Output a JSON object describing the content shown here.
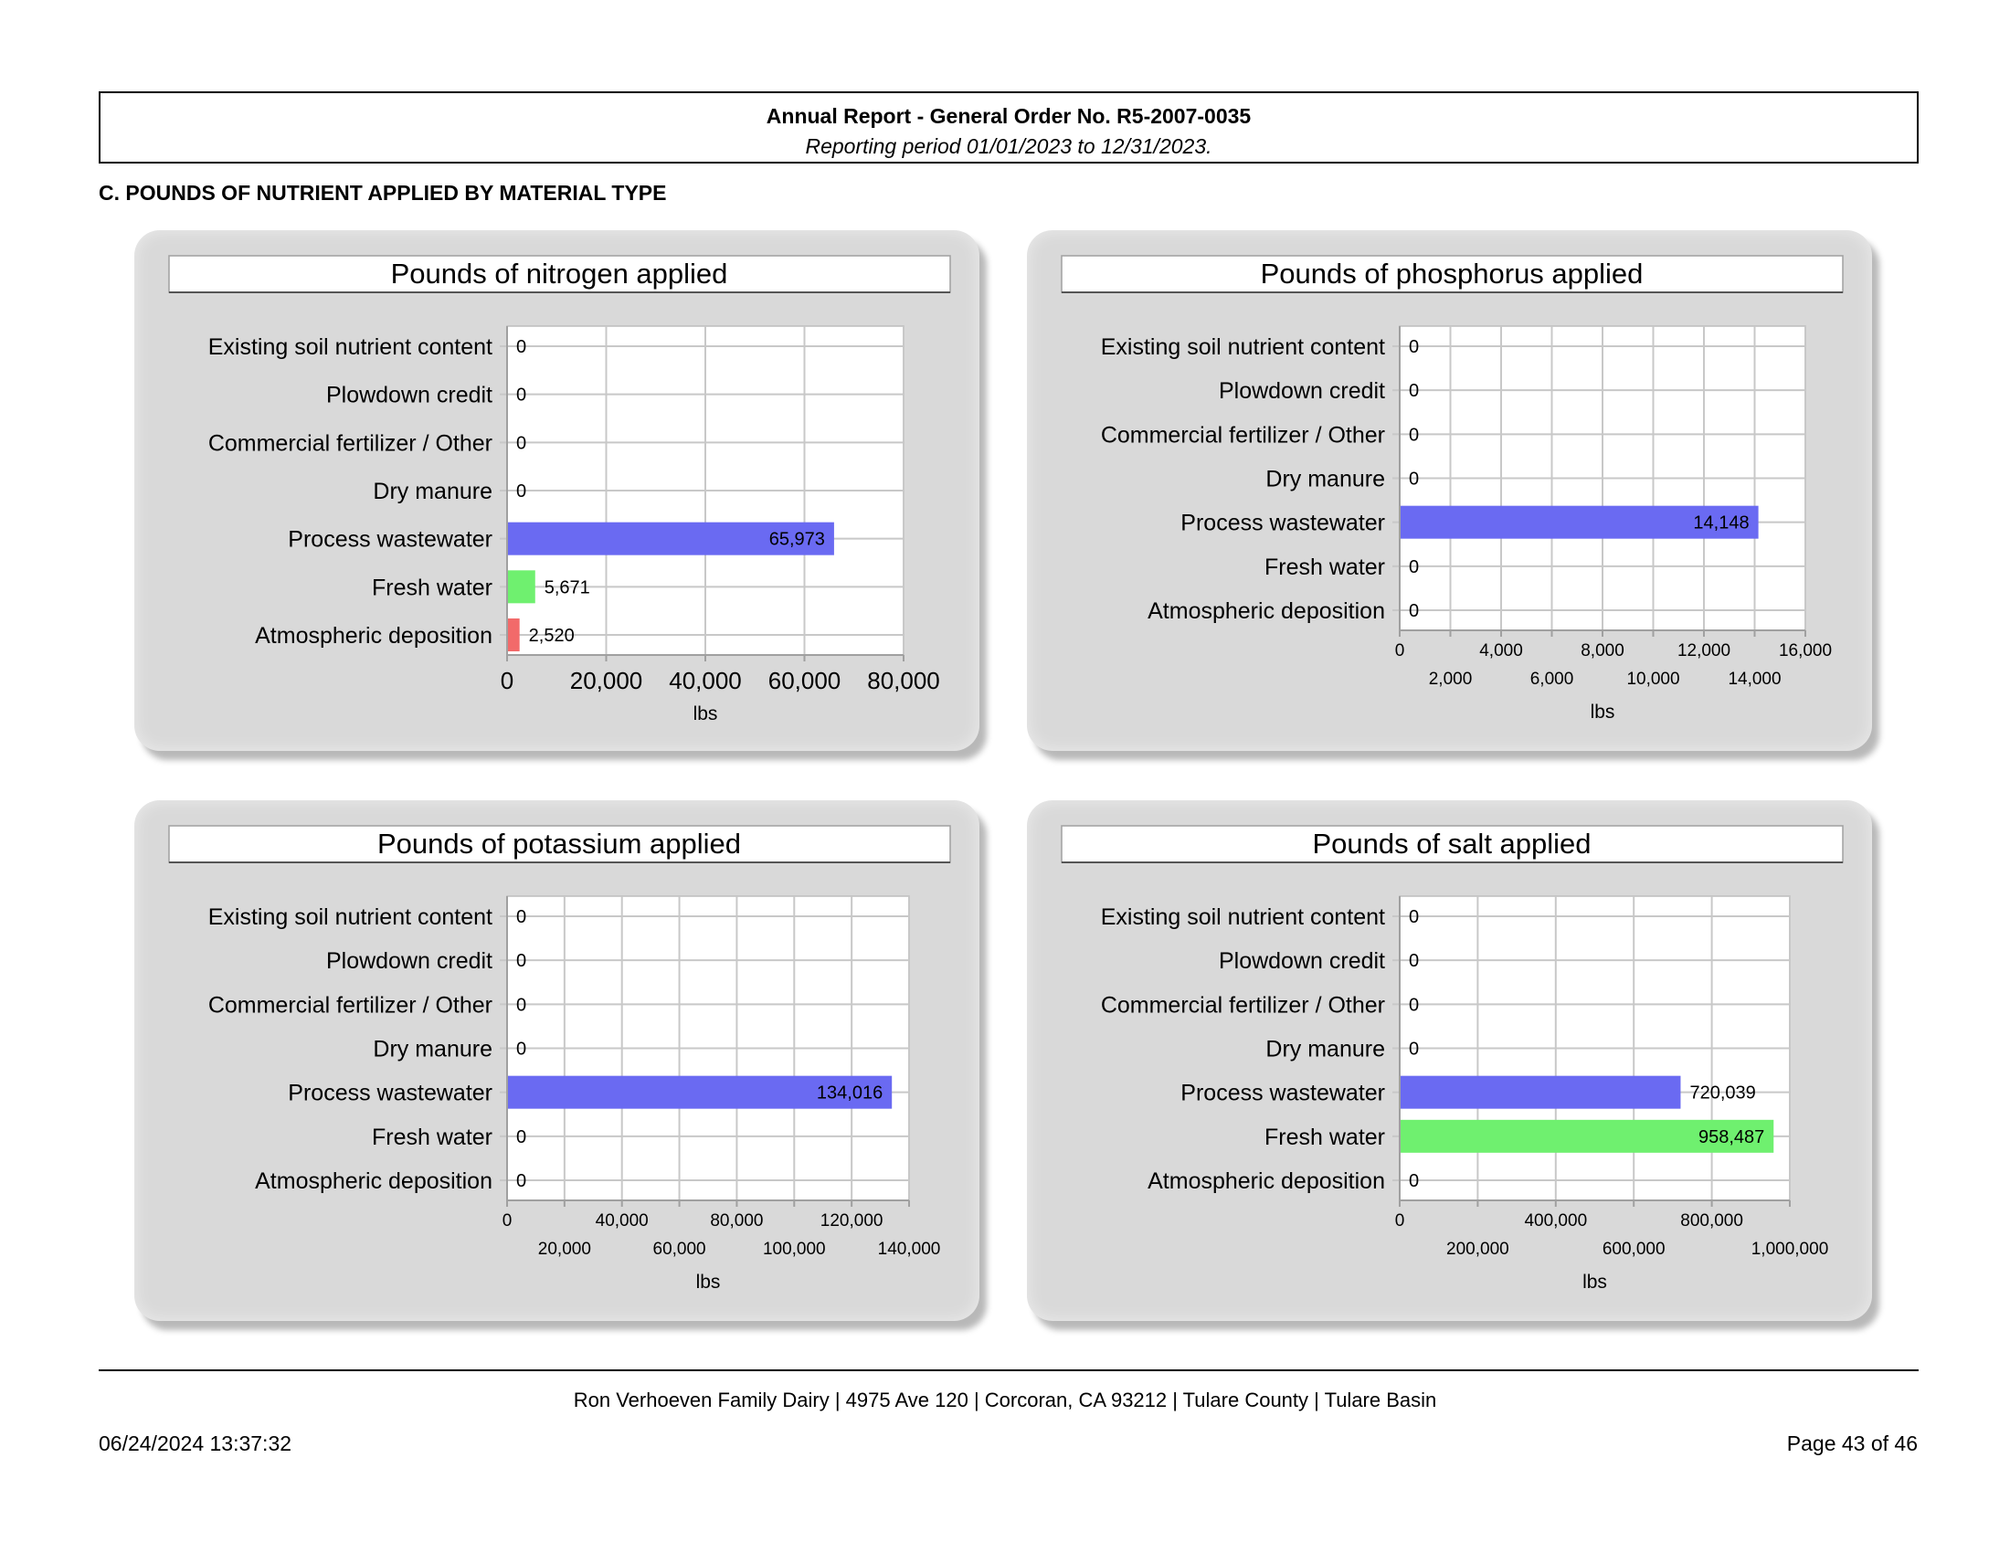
{
  "header": {
    "title": "Annual Report - General Order No. R5-2007-0035",
    "subtitle": "Reporting period 01/01/2023 to 12/31/2023."
  },
  "section_heading": "C. POUNDS OF NUTRIENT APPLIED BY MATERIAL TYPE",
  "chart_data": [
    {
      "type": "bar",
      "orientation": "horizontal",
      "title": "Pounds of nitrogen applied",
      "xlabel": "lbs",
      "ylabel": "",
      "categories": [
        "Existing soil nutrient content",
        "Plowdown credit",
        "Commercial fertilizer / Other",
        "Dry manure",
        "Process wastewater",
        "Fresh water",
        "Atmospheric deposition"
      ],
      "values": [
        0,
        0,
        0,
        0,
        65973,
        5671,
        2520
      ],
      "value_labels": [
        "0",
        "0",
        "0",
        "0",
        "65,973",
        "5,671",
        "2,520"
      ],
      "bar_colors": [
        "#6a6af2",
        "#6a6af2",
        "#6a6af2",
        "#6a6af2",
        "#6a6af2",
        "#6ff06f",
        "#f26a6a"
      ],
      "xlim": [
        0,
        80000
      ],
      "x_ticks": [
        0,
        20000,
        40000,
        60000,
        80000
      ],
      "x_tick_labels": [
        "0",
        "20,000",
        "40,000",
        "60,000",
        "80,000"
      ],
      "tick_style": "single",
      "grid": true,
      "legend": "none"
    },
    {
      "type": "bar",
      "orientation": "horizontal",
      "title": "Pounds of phosphorus applied",
      "xlabel": "lbs",
      "ylabel": "",
      "categories": [
        "Existing soil nutrient content",
        "Plowdown credit",
        "Commercial fertilizer / Other",
        "Dry manure",
        "Process wastewater",
        "Fresh water",
        "Atmospheric deposition"
      ],
      "values": [
        0,
        0,
        0,
        0,
        14148,
        0,
        0
      ],
      "value_labels": [
        "0",
        "0",
        "0",
        "0",
        "14,148",
        "0",
        "0"
      ],
      "bar_colors": [
        "#6a6af2",
        "#6a6af2",
        "#6a6af2",
        "#6a6af2",
        "#6a6af2",
        "#6ff06f",
        "#f26a6a"
      ],
      "xlim": [
        0,
        16000
      ],
      "x_ticks": [
        0,
        2000,
        4000,
        6000,
        8000,
        10000,
        12000,
        14000,
        16000
      ],
      "x_tick_labels": [
        "0",
        "2,000",
        "4,000",
        "6,000",
        "8,000",
        "10,000",
        "12,000",
        "14,000",
        "16,000"
      ],
      "tick_style": "staggered",
      "grid": true,
      "legend": "none"
    },
    {
      "type": "bar",
      "orientation": "horizontal",
      "title": "Pounds of potassium applied",
      "xlabel": "lbs",
      "ylabel": "",
      "categories": [
        "Existing soil nutrient content",
        "Plowdown credit",
        "Commercial fertilizer / Other",
        "Dry manure",
        "Process wastewater",
        "Fresh water",
        "Atmospheric deposition"
      ],
      "values": [
        0,
        0,
        0,
        0,
        134016,
        0,
        0
      ],
      "value_labels": [
        "0",
        "0",
        "0",
        "0",
        "134,016",
        "0",
        "0"
      ],
      "bar_colors": [
        "#6a6af2",
        "#6a6af2",
        "#6a6af2",
        "#6a6af2",
        "#6a6af2",
        "#6ff06f",
        "#f26a6a"
      ],
      "xlim": [
        0,
        140000
      ],
      "x_ticks": [
        0,
        20000,
        40000,
        60000,
        80000,
        100000,
        120000,
        140000
      ],
      "x_tick_labels": [
        "0",
        "20,000",
        "40,000",
        "60,000",
        "80,000",
        "100,000",
        "120,000",
        "140,000"
      ],
      "tick_style": "staggered",
      "grid": true,
      "legend": "none"
    },
    {
      "type": "bar",
      "orientation": "horizontal",
      "title": "Pounds of salt applied",
      "xlabel": "lbs",
      "ylabel": "",
      "categories": [
        "Existing soil nutrient content",
        "Plowdown credit",
        "Commercial fertilizer / Other",
        "Dry manure",
        "Process wastewater",
        "Fresh water",
        "Atmospheric deposition"
      ],
      "values": [
        0,
        0,
        0,
        0,
        720039,
        958487,
        0
      ],
      "value_labels": [
        "0",
        "0",
        "0",
        "0",
        "720,039",
        "958,487",
        "0"
      ],
      "bar_colors": [
        "#6a6af2",
        "#6a6af2",
        "#6a6af2",
        "#6a6af2",
        "#6a6af2",
        "#6ff06f",
        "#f26a6a"
      ],
      "xlim": [
        0,
        1000000
      ],
      "x_ticks": [
        0,
        200000,
        400000,
        600000,
        800000,
        1000000
      ],
      "x_tick_labels": [
        "0",
        "200,000",
        "400,000",
        "600,000",
        "800,000",
        "1,000,000"
      ],
      "tick_style": "staggered",
      "grid": true,
      "legend": "none"
    }
  ],
  "footer": {
    "address": "Ron Verhoeven Family Dairy | 4975 Ave 120 | Corcoran, CA 93212 | Tulare County | Tulare Basin",
    "timestamp": "06/24/2024 13:37:32",
    "page": "Page 43 of 46"
  },
  "colors": {
    "panel_background": "#d9d9d9",
    "plot_background": "#ffffff",
    "grid": "#c8c8c8"
  }
}
